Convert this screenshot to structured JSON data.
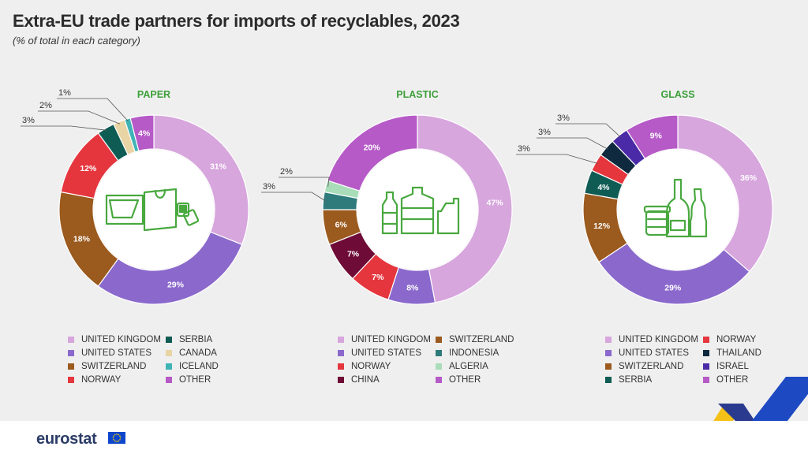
{
  "title": "Extra-EU trade partners for imports of recyclables, 2023",
  "subtitle": "(% of total in each category)",
  "footer": {
    "logo_text": "eurostat"
  },
  "colors": {
    "United Kingdom": "#d7a6dd",
    "United States": "#8b69cc",
    "Switzerland": "#9b5a1e",
    "Norway": "#e5363e",
    "Serbia": "#0f5c55",
    "Canada": "#e8d4a4",
    "Iceland": "#3fb3b6",
    "Other": "#b65ac7",
    "Indonesia": "#2f7b7b",
    "Algeria": "#a9dcb8",
    "China": "#6e0b36",
    "Thailand": "#0f2a3f",
    "Israel": "#4b2aa8",
    "category_title": "#3d9f3a",
    "icon": "#49a83f"
  },
  "chart_data": [
    {
      "type": "pie",
      "title": "PAPER",
      "icon": "paper-icon",
      "slices": [
        {
          "name": "United Kingdom",
          "value": 31,
          "label": "31%"
        },
        {
          "name": "United States",
          "value": 29,
          "label": "29%"
        },
        {
          "name": "Switzerland",
          "value": 18,
          "label": "18%"
        },
        {
          "name": "Norway",
          "value": 12,
          "label": "12%"
        },
        {
          "name": "Serbia",
          "value": 3,
          "label": "3%"
        },
        {
          "name": "Canada",
          "value": 2,
          "label": "2%"
        },
        {
          "name": "Iceland",
          "value": 1,
          "label": "1%"
        },
        {
          "name": "Other",
          "value": 4,
          "label": "4%"
        }
      ],
      "legend": [
        "UNITED KINGDOM",
        "SERBIA",
        "UNITED STATES",
        "CANADA",
        "SWITZERLAND",
        "ICELAND",
        "NORWAY",
        "OTHER"
      ],
      "legend_keys": [
        "United Kingdom",
        "Serbia",
        "United States",
        "Canada",
        "Switzerland",
        "Iceland",
        "Norway",
        "Other"
      ]
    },
    {
      "type": "pie",
      "title": "PLASTIC",
      "icon": "plastic-bottles-icon",
      "slices": [
        {
          "name": "United Kingdom",
          "value": 47,
          "label": "47%"
        },
        {
          "name": "United States",
          "value": 8,
          "label": "8%"
        },
        {
          "name": "Norway",
          "value": 7,
          "label": "7%"
        },
        {
          "name": "China",
          "value": 7,
          "label": "7%"
        },
        {
          "name": "Switzerland",
          "value": 6,
          "label": "6%"
        },
        {
          "name": "Indonesia",
          "value": 3,
          "label": "3%"
        },
        {
          "name": "Algeria",
          "value": 2,
          "label": "2%"
        },
        {
          "name": "Other",
          "value": 20,
          "label": "20%"
        }
      ],
      "legend": [
        "UNITED KINGDOM",
        "SWITZERLAND",
        "UNITED STATES",
        "INDONESIA",
        "NORWAY",
        "ALGERIA",
        "CHINA",
        "OTHER"
      ],
      "legend_keys": [
        "United Kingdom",
        "Switzerland",
        "United States",
        "Indonesia",
        "Norway",
        "Algeria",
        "China",
        "Other"
      ]
    },
    {
      "type": "pie",
      "title": "GLASS",
      "icon": "glass-jars-icon",
      "slices": [
        {
          "name": "United Kingdom",
          "value": 36,
          "label": "36%"
        },
        {
          "name": "United States",
          "value": 29,
          "label": "29%"
        },
        {
          "name": "Switzerland",
          "value": 12,
          "label": "12%"
        },
        {
          "name": "Serbia",
          "value": 4,
          "label": "4%"
        },
        {
          "name": "Norway",
          "value": 3,
          "label": "3%"
        },
        {
          "name": "Thailand",
          "value": 3,
          "label": "3%"
        },
        {
          "name": "Israel",
          "value": 3,
          "label": "3%"
        },
        {
          "name": "Other",
          "value": 9,
          "label": "9%"
        }
      ],
      "legend": [
        "UNITED KINGDOM",
        "NORWAY",
        "UNITED STATES",
        "THAILAND",
        "SWITZERLAND",
        "ISRAEL",
        "SERBIA",
        "OTHER"
      ],
      "legend_keys": [
        "United Kingdom",
        "Norway",
        "United States",
        "Thailand",
        "Switzerland",
        "Israel",
        "Serbia",
        "Other"
      ]
    }
  ]
}
